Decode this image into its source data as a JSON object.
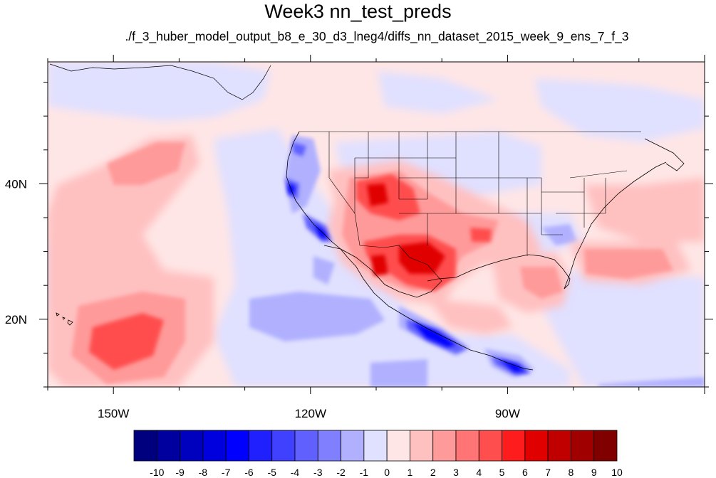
{
  "title": "Week3 nn_test_preds",
  "subtitle": "./f_3_huber_model_output_b8_e_30_d3_lneg4/diffs_nn_dataset_2015_week_9_ens_7_f_3",
  "map": {
    "lon_range": [
      -160,
      -60
    ],
    "lat_range": [
      10,
      58
    ],
    "lon_labels": [
      {
        "lon": -150,
        "text": "150W"
      },
      {
        "lon": -120,
        "text": "120W"
      },
      {
        "lon": -90,
        "text": "90W"
      }
    ],
    "lat_labels": [
      {
        "lat": 40,
        "text": "40N"
      },
      {
        "lat": 20,
        "text": "20N"
      }
    ],
    "colorbar": {
      "labels": [
        "-10",
        "-9",
        "-8",
        "-7",
        "-6",
        "-5",
        "-4",
        "-3",
        "-2",
        "-1",
        "0",
        "1",
        "2",
        "3",
        "4",
        "5",
        "6",
        "7",
        "8",
        "9",
        "10"
      ],
      "colors": [
        "#00007f",
        "#00009f",
        "#0000bf",
        "#0000df",
        "#0000ff",
        "#2020ff",
        "#4040ff",
        "#6060ff",
        "#8080ff",
        "#b0b0ff",
        "#e0e0ff",
        "#ffe6e6",
        "#ffc0c0",
        "#ff9a9a",
        "#ff7474",
        "#ff4e4e",
        "#ff1c1c",
        "#e00000",
        "#c00000",
        "#a00000",
        "#800000"
      ]
    }
  }
}
